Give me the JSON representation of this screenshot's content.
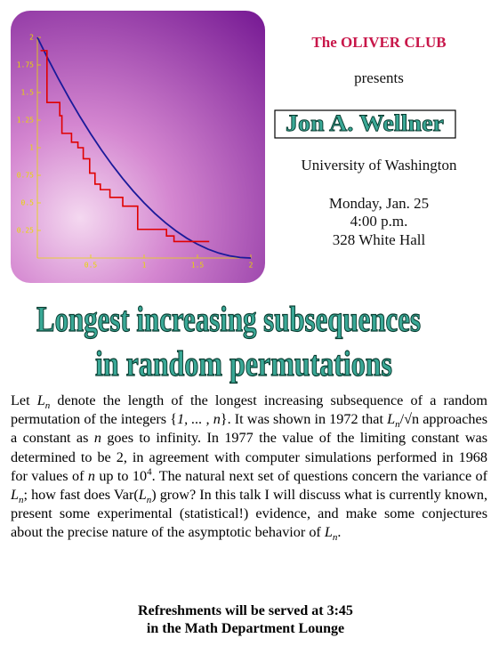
{
  "chart_data": {
    "type": "line",
    "xlim": [
      0,
      2
    ],
    "ylim": [
      0,
      2
    ],
    "xticks": [
      0.5,
      1,
      1.5,
      2
    ],
    "yticks": [
      2,
      1.75,
      1.5,
      1.25,
      1,
      0.75,
      0.5,
      0.25
    ],
    "series": [
      {
        "color": "#1a1a9a",
        "x": [
          0,
          0.1,
          0.2,
          0.3,
          0.4,
          0.5,
          0.6,
          0.7,
          0.8,
          0.9,
          1,
          1.1,
          1.2,
          1.3,
          1.4,
          1.5,
          1.6,
          1.7,
          1.8,
          1.9,
          2
        ],
        "values": [
          2,
          1.805,
          1.62,
          1.445,
          1.28,
          1.125,
          0.98,
          0.845,
          0.72,
          0.605,
          0.5,
          0.405,
          0.32,
          0.245,
          0.18,
          0.125,
          0.08,
          0.045,
          0.02,
          0.005,
          0
        ]
      },
      {
        "color": "#e00000",
        "step": true,
        "x": [
          0.03,
          0.09,
          0.21,
          0.23,
          0.32,
          0.38,
          0.43,
          0.49,
          0.54,
          0.59,
          0.68,
          0.8,
          0.94,
          1.21,
          1.28,
          1.61
        ],
        "values": [
          1.88,
          1.41,
          1.29,
          1.13,
          1.05,
          1.0,
          0.9,
          0.77,
          0.67,
          0.62,
          0.55,
          0.47,
          0.26,
          0.2,
          0.15,
          0.15
        ]
      }
    ]
  },
  "header": {
    "club": "The OLIVER CLUB",
    "presents": "presents",
    "speaker": "Jon A. Wellner",
    "affiliation": "University of Washington",
    "date": "Monday, Jan. 25",
    "time": "4:00 p.m.",
    "room": "328 White Hall"
  },
  "title": [
    "Longest increasing subsequences",
    "in random permutations"
  ],
  "abstract": [
    "Let ",
    "L",
    "n",
    " denote the length of the longest increasing subsequence of a random permutation of the integers  {",
    "1, ... , n",
    "}.  It was shown in 1972 that  ",
    "L",
    "n",
    "/√n",
    "  approaches a constant as  ",
    "n",
    "  goes to infinity.  In 1977 the value of the limiting constant was determined to be  2, in agreement with computer simulations performed in 1968 for values of  ",
    "n",
    "  up to  10",
    "4",
    ".  The natural next set of questions concern the variance of  ",
    "L",
    "n",
    ";  how fast does  Var(",
    "L",
    "n",
    ")  grow?  In this talk I will discuss what is currently known, present some experimental (statistical!) evidence, and make some conjectures about the precise nature of the asymptotic behavior of  ",
    "L",
    "n",
    "."
  ],
  "footer": [
    "Refreshments will be served at 3:45",
    "in the Math Department Lounge"
  ]
}
